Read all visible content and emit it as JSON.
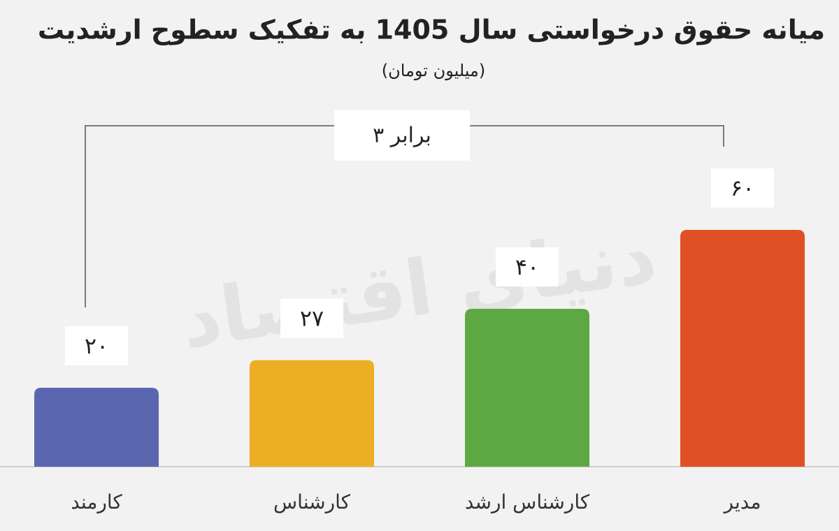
{
  "chart_data": {
    "type": "bar",
    "title": "میانه حقوق درخواستی سال 1405 به تفکیک سطوح ارشدیت",
    "subtitle": "(میلیون تومان)",
    "categories": [
      "کارمند",
      "کارشناس",
      "کارشناس ارشد",
      "مدیر"
    ],
    "values": [
      20,
      27,
      40,
      60
    ],
    "value_labels": [
      "۲۰",
      "۲۷",
      "۴۰",
      "۶۰"
    ],
    "colors": [
      "#5a67b0",
      "#ecae22",
      "#5ea843",
      "#e05025"
    ],
    "annotation": "۳ برابر",
    "watermark": "دنیای اقتصاد"
  }
}
